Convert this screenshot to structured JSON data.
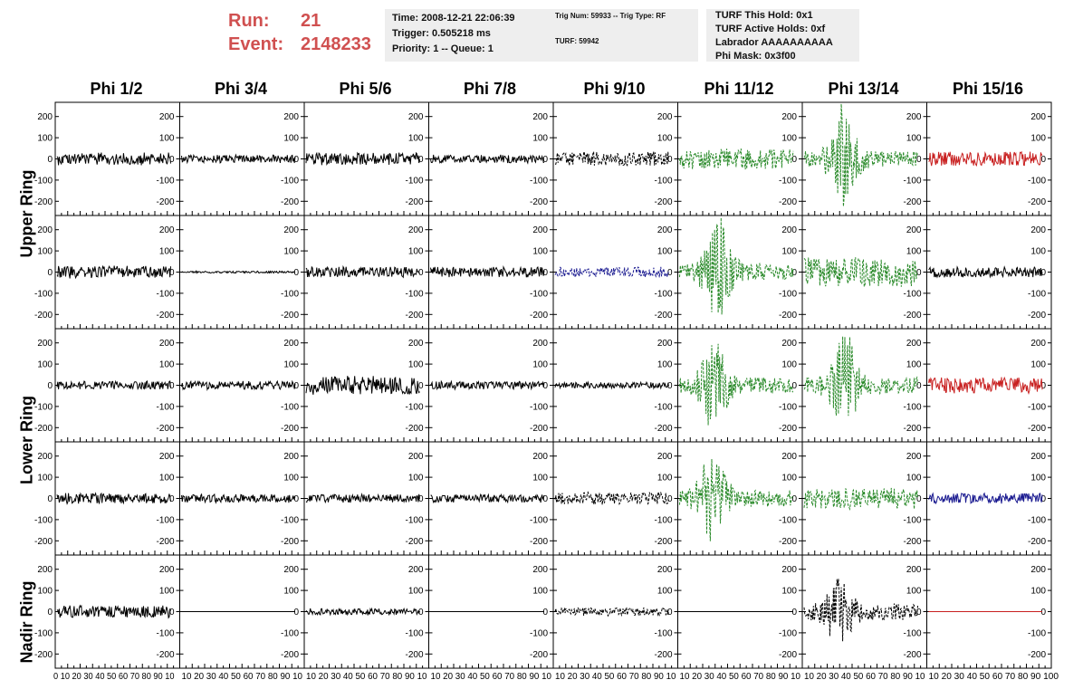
{
  "header": {
    "run_label": "Run:",
    "run_value": "21",
    "event_label": "Event:",
    "event_value": "2148233"
  },
  "time_box": {
    "time": "Time: 2008-12-21 22:06:39",
    "trigger": "Trigger: 0.505218 ms",
    "priority": "Priority: 1 -- Queue: 1"
  },
  "trig_box": {
    "trig": "Trig Num: 59933 -- Trig Type: RF",
    "turf": "TURF: 59942"
  },
  "turf_box": {
    "this_hold": "TURF This Hold: 0x1",
    "active_holds": "TURF Active Holds: 0xf",
    "labrador": "Labrador AAAAAAAAAA",
    "phi_mask": "Phi Mask: 0x3f00"
  },
  "columns": [
    "Phi 1/2",
    "Phi 3/4",
    "Phi 5/6",
    "Phi 7/8",
    "Phi 9/10",
    "Phi 11/12",
    "Phi 13/14",
    "Phi 15/16"
  ],
  "ring_labels": {
    "upper": "Upper Ring",
    "lower": "Lower Ring",
    "nadir": "Nadir Ring"
  },
  "axis": {
    "y_ticks": [
      "200",
      "100",
      "0",
      "-100",
      "-200"
    ],
    "x_tick_strings": [
      "0 10 20 30 40 50 60 70 80 90 10",
      "10 20 30 40 50 60 70 80 90 10",
      "10 20 30 40 50 60 70 80 90 10",
      "10 20 30 40 50 60 70 80 90 10",
      "10 20 30 40 50 60 70 80 90 10",
      "10 20 30 40 50 60 70 80 90 10",
      "10 20 30 40 50 60 70 80 90 10",
      "10 20 30 40 50 60 70 80 90 100"
    ]
  },
  "colors": {
    "default": "#000000",
    "green": "#2a8a2a",
    "red": "#c82020",
    "blue": "#1a1a90",
    "label_red": "#d05050",
    "info_bg": "#eeeeee"
  },
  "panels": [
    [
      {
        "c": "black",
        "a": 6,
        "dash": false
      },
      {
        "c": "black",
        "a": 4,
        "dash": false
      },
      {
        "c": "black",
        "a": 6,
        "dash": false
      },
      {
        "c": "black",
        "a": 4,
        "dash": false
      },
      {
        "c": "black",
        "a": 7,
        "dash": true
      },
      {
        "c": "green",
        "a": 10,
        "dash": true
      },
      {
        "c": "green",
        "a": 45,
        "pulse": true,
        "dash": true
      },
      {
        "c": "red",
        "a": 7,
        "dash": false
      }
    ],
    [
      {
        "c": "black",
        "a": 6,
        "dash": false
      },
      {
        "c": "black",
        "a": 1,
        "dash": false
      },
      {
        "c": "black",
        "a": 5,
        "dash": false
      },
      {
        "c": "black",
        "a": 5,
        "dash": false
      },
      {
        "c": "blue",
        "a": 5,
        "dash": true
      },
      {
        "c": "green",
        "a": 45,
        "pulse": true,
        "dash": true
      },
      {
        "c": "green",
        "a": 14,
        "dash": true
      },
      {
        "c": "black",
        "a": 5,
        "dash": false
      }
    ],
    [
      {
        "c": "black",
        "a": 4,
        "dash": false
      },
      {
        "c": "black",
        "a": 4,
        "dash": false
      },
      {
        "c": "black",
        "a": 9,
        "dash": false
      },
      {
        "c": "black",
        "a": 4,
        "dash": false
      },
      {
        "c": "black",
        "a": 3,
        "dash": false
      },
      {
        "c": "green",
        "a": 35,
        "pulse": true,
        "dash": true
      },
      {
        "c": "green",
        "a": 45,
        "pulse": true,
        "dash": true
      },
      {
        "c": "red",
        "a": 8,
        "dash": false
      }
    ],
    [
      {
        "c": "black",
        "a": 5,
        "dash": false
      },
      {
        "c": "black",
        "a": 4,
        "dash": false
      },
      {
        "c": "black",
        "a": 4,
        "dash": false
      },
      {
        "c": "black",
        "a": 4,
        "dash": false
      },
      {
        "c": "black",
        "a": 6,
        "dash": true
      },
      {
        "c": "green",
        "a": 40,
        "pulse": true,
        "dash": true
      },
      {
        "c": "green",
        "a": 10,
        "dash": true
      },
      {
        "c": "blue",
        "a": 5,
        "dash": false
      }
    ],
    [
      {
        "c": "black",
        "a": 6,
        "dash": false
      },
      {
        "c": "black",
        "a": 0,
        "dash": false
      },
      {
        "c": "black",
        "a": 3,
        "dash": false
      },
      {
        "c": "black",
        "a": 0,
        "dash": false
      },
      {
        "c": "black",
        "a": 4,
        "dash": true
      },
      {
        "c": "black",
        "a": 0,
        "dash": false
      },
      {
        "c": "black",
        "a": 25,
        "pulse": true,
        "dash": true
      },
      {
        "c": "red",
        "a": 0,
        "dash": false
      }
    ]
  ]
}
